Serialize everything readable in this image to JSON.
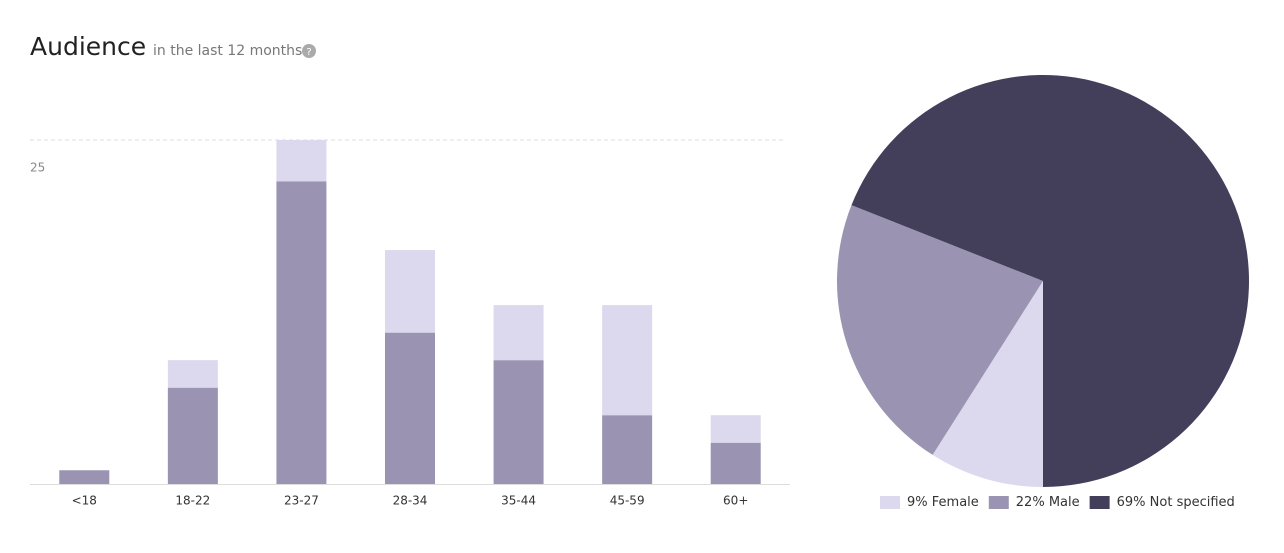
{
  "title": "Audience",
  "subtitle": "in the last 12 months",
  "help_icon": "?",
  "chart_data": [
    {
      "type": "stacked_bar",
      "categories": [
        "<18",
        "18-22",
        "23-27",
        "28-34",
        "35-44",
        "45-59",
        "60+"
      ],
      "series": [
        {
          "color": "#9a94b2",
          "values": [
            1,
            7,
            22,
            11,
            9,
            5,
            3
          ]
        },
        {
          "color": "#dcd8ee",
          "values": [
            0,
            2,
            3,
            6,
            4,
            8,
            2
          ]
        }
      ],
      "ylim": [
        0,
        25
      ],
      "yticks": [
        25
      ],
      "grid": true
    },
    {
      "type": "pie",
      "categories": [
        "Female",
        "Male",
        "Not specified"
      ],
      "values": [
        9,
        22,
        69
      ],
      "value_labels": [
        "9%",
        "22%",
        "69%"
      ],
      "colors": [
        "#dcd8ee",
        "#9a94b2",
        "#433e5a"
      ],
      "legend": "bottom"
    }
  ]
}
